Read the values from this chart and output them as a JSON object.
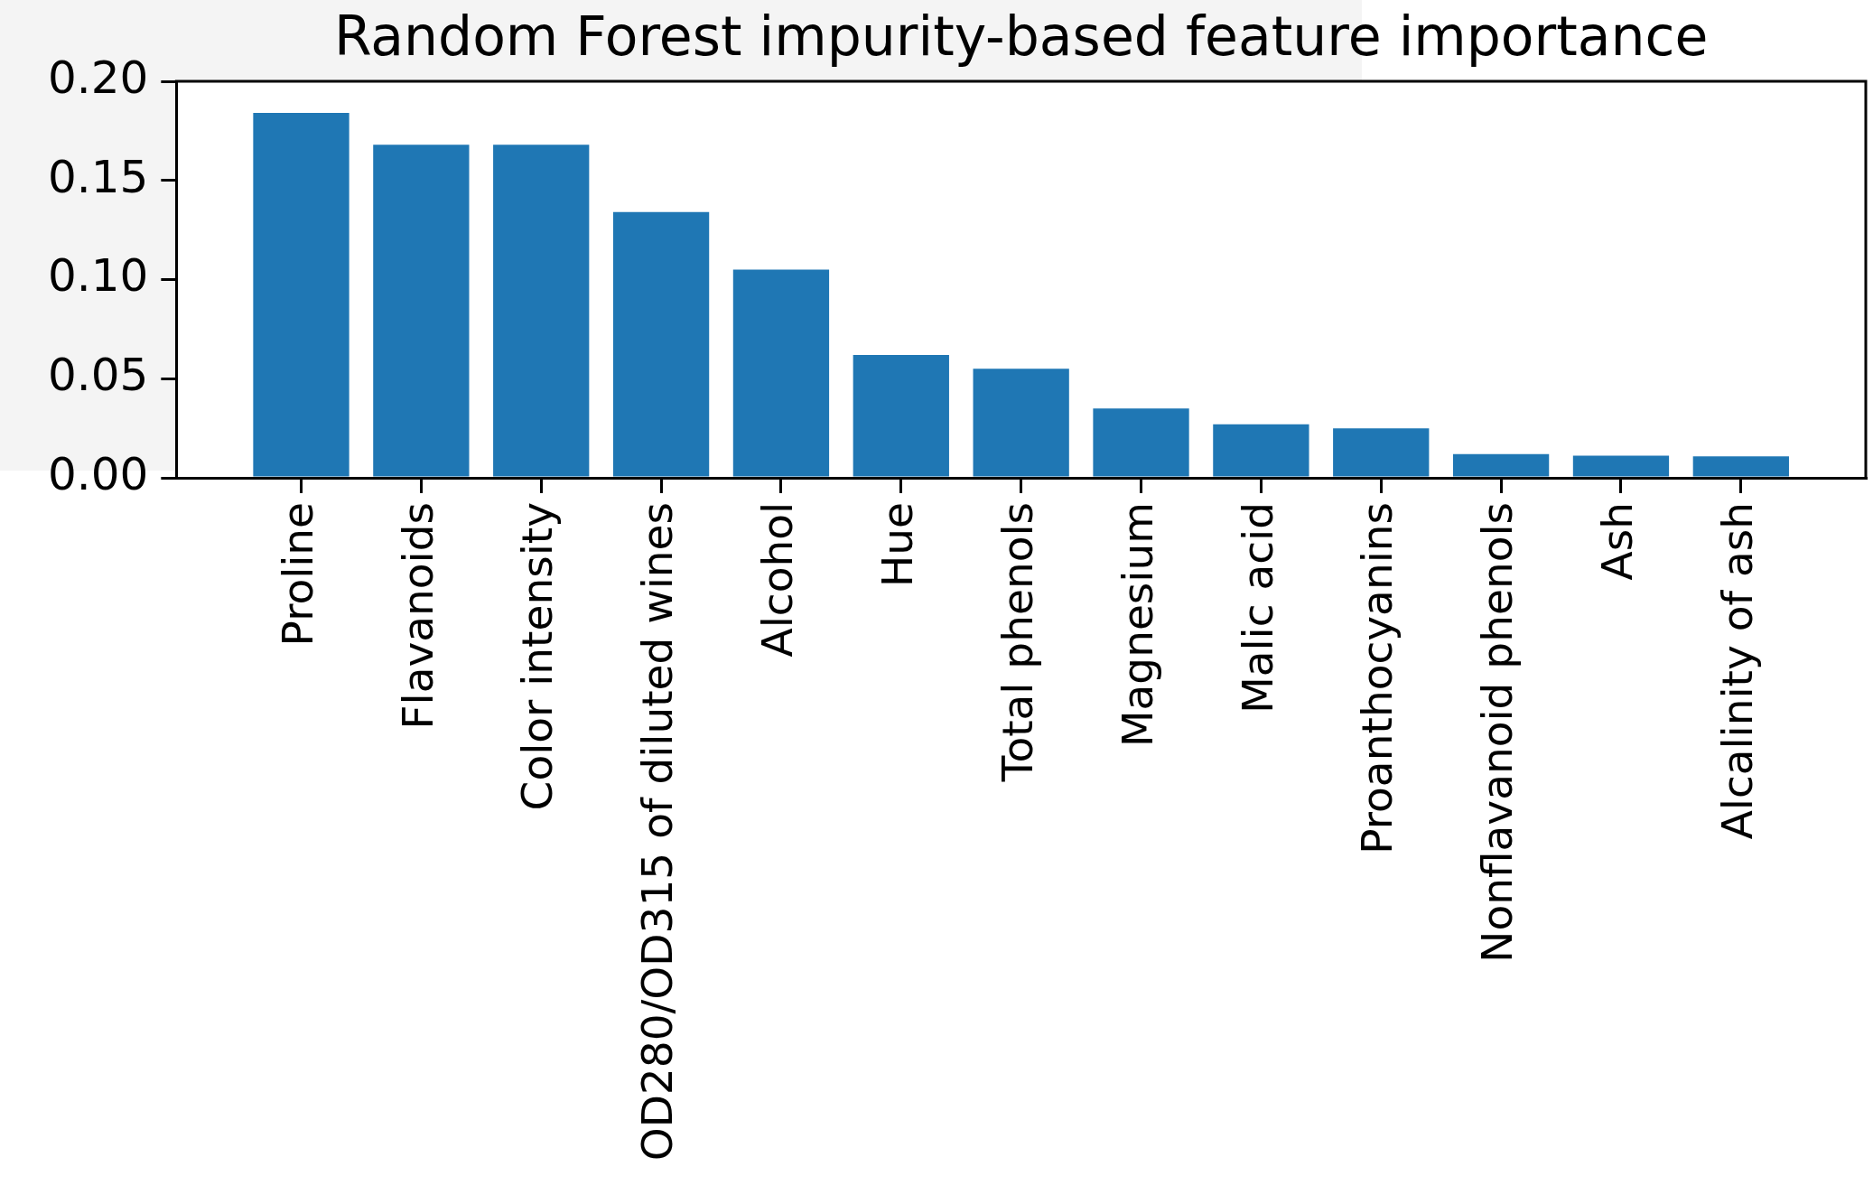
{
  "chart_data": {
    "type": "bar",
    "title": "Random Forest impurity-based feature importance",
    "categories": [
      "Proline",
      "Flavanoids",
      "Color intensity",
      "OD280/OD315 of diluted wines",
      "Alcohol",
      "Hue",
      "Total phenols",
      "Magnesium",
      "Malic acid",
      "Proanthocyanins",
      "Nonflavanoid phenols",
      "Ash",
      "Alcalinity of ash"
    ],
    "values": [
      0.184,
      0.168,
      0.168,
      0.134,
      0.105,
      0.062,
      0.055,
      0.035,
      0.027,
      0.025,
      0.012,
      0.0112,
      0.0108
    ],
    "color": "#1f77b4",
    "ylim": [
      0,
      0.2
    ],
    "yticks": [
      {
        "value": 0,
        "label": "0.00"
      },
      {
        "value": 0.05,
        "label": "0.05"
      },
      {
        "value": 0.1,
        "label": "0.10"
      },
      {
        "value": 0.15,
        "label": "0.15"
      },
      {
        "value": 0.2,
        "label": "0.20"
      }
    ]
  }
}
